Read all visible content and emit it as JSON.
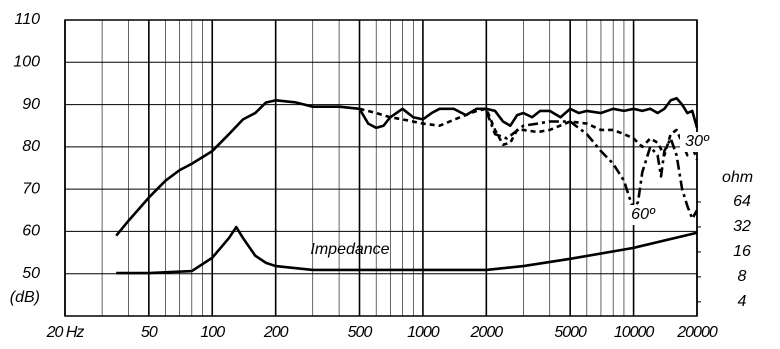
{
  "chart_data": {
    "type": "line",
    "ylabel": "(dB)",
    "y2label": "ohm",
    "xlim": [
      20,
      20000
    ],
    "xscale": "log",
    "xticks": [
      {
        "value": 20,
        "label": "20 Hz"
      },
      50,
      100,
      200,
      500,
      1000,
      2000,
      5000,
      10000,
      20000
    ],
    "xgrid": [
      30,
      40,
      60,
      70,
      80,
      90,
      300,
      400,
      600,
      700,
      800,
      900,
      3000,
      4000,
      6000,
      7000,
      8000,
      9000
    ],
    "ylim": [
      40,
      110
    ],
    "yticks": [
      50,
      60,
      70,
      80,
      90,
      100,
      110
    ],
    "y2lim": [
      2.7,
      10000
    ],
    "y2scale": "log",
    "y2ticks": [
      4,
      8,
      16,
      32,
      64
    ],
    "grid": true,
    "color": "#000000",
    "annotations": [
      "Impedance",
      "60º",
      "30º"
    ],
    "series": [
      {
        "style": "solid",
        "color": "#000000",
        "x": [
          35,
          40,
          50,
          60,
          70,
          80,
          100,
          120,
          140,
          160,
          180,
          200,
          250,
          300,
          400,
          500,
          550,
          600,
          650,
          700,
          800,
          900,
          1000,
          1100,
          1200,
          1400,
          1600,
          1800,
          2000,
          2200,
          2400,
          2600,
          2800,
          3000,
          3300,
          3600,
          4000,
          4500,
          5000,
          5500,
          6000,
          7000,
          8000,
          9000,
          10000,
          11000,
          12000,
          13000,
          14000,
          15000,
          16000,
          17000,
          18000,
          19000,
          20000
        ],
        "values": [
          59,
          62.5,
          68,
          72,
          74.5,
          76,
          79,
          83,
          86.5,
          88,
          90.5,
          91,
          90.5,
          89.5,
          89.5,
          89,
          85.5,
          84.5,
          85,
          87,
          89,
          87,
          86.5,
          88,
          89,
          89,
          87.5,
          89,
          89,
          88.5,
          86,
          85,
          87.5,
          88,
          87,
          88.5,
          88.5,
          87,
          89,
          88,
          88.5,
          88,
          89,
          88.5,
          89,
          88.5,
          89,
          88,
          89,
          91,
          91.5,
          90,
          88,
          88.5,
          84.5
        ]
      },
      {
        "name": "30º",
        "style": "dashed",
        "color": "#000000",
        "x": [
          500,
          600,
          700,
          800,
          1000,
          1200,
          1500,
          1800,
          2000,
          2200,
          2400,
          2600,
          2800,
          3000,
          3500,
          4000,
          5000,
          6000,
          7000,
          8000,
          9000,
          10000,
          11000,
          12000,
          13000,
          14000,
          15000,
          16000,
          17000,
          18000,
          19000,
          20000
        ],
        "values": [
          89,
          88,
          87,
          86.5,
          85.5,
          85,
          87,
          88.5,
          89,
          84,
          80.5,
          81,
          84,
          84,
          83.5,
          84,
          86,
          85.5,
          84,
          84,
          83,
          82,
          80,
          82,
          81,
          78,
          83,
          84,
          81,
          78,
          80,
          77
        ]
      },
      {
        "name": "60º",
        "style": "dashdot",
        "color": "#000000",
        "x": [
          2000,
          2200,
          2500,
          3000,
          3500,
          4000,
          5000,
          6000,
          7000,
          8000,
          9000,
          10000,
          10500,
          11000,
          12000,
          13000,
          13500,
          14000,
          15000,
          16000,
          17000,
          18000,
          19000,
          20000
        ],
        "values": [
          88.5,
          83,
          82,
          85,
          85.5,
          86,
          86,
          83,
          79,
          76,
          72,
          65,
          67,
          74,
          80,
          78,
          73,
          79,
          82,
          78,
          70,
          66,
          63,
          65
        ]
      },
      {
        "name": "Impedance",
        "style": "solid",
        "color": "#000000",
        "axis": "y2",
        "x": [
          35,
          50,
          80,
          100,
          120,
          130,
          140,
          160,
          180,
          200,
          300,
          500,
          1000,
          2000,
          3000,
          5000,
          10000,
          20000
        ],
        "values": [
          8.9,
          8.9,
          9.4,
          13.6,
          23.5,
          31.9,
          23.5,
          14.4,
          11.8,
          10.8,
          9.7,
          9.7,
          9.7,
          9.7,
          10.8,
          13.2,
          17.9,
          27.2
        ]
      }
    ]
  }
}
